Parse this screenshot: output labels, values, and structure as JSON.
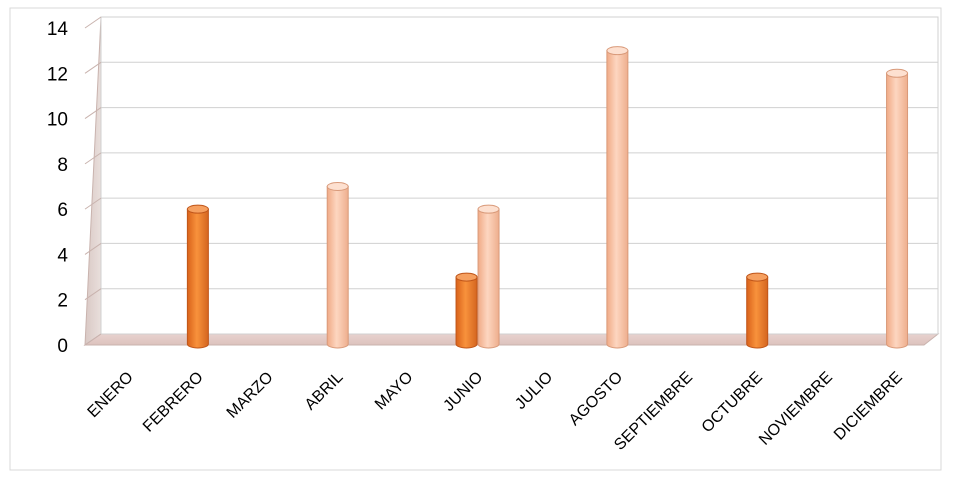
{
  "chart_data": {
    "type": "bar",
    "categories": [
      "ENERO",
      "FEBRERO",
      "MARZO",
      "ABRIL",
      "MAYO",
      "JUNIO",
      "JULIO",
      "AGOSTO",
      "SEPTIEMBRE",
      "OCTUBRE",
      "NOVIEMBRE",
      "DICIEMBRE"
    ],
    "series": [
      {
        "values": [
          0,
          6,
          0,
          0,
          0,
          3,
          0,
          0,
          0,
          3,
          0,
          0
        ],
        "color": "#f5822a"
      },
      {
        "values": [
          0,
          0,
          0,
          7,
          0,
          6,
          0,
          13,
          0,
          0,
          0,
          12
        ],
        "color": "#fbc4a6"
      }
    ],
    "ylim": [
      0,
      14
    ],
    "yticks": [
      0,
      2,
      4,
      6,
      8,
      10,
      12,
      14
    ],
    "grid": true,
    "legend": "none",
    "title": "",
    "xlabel": "",
    "ylabel": ""
  }
}
